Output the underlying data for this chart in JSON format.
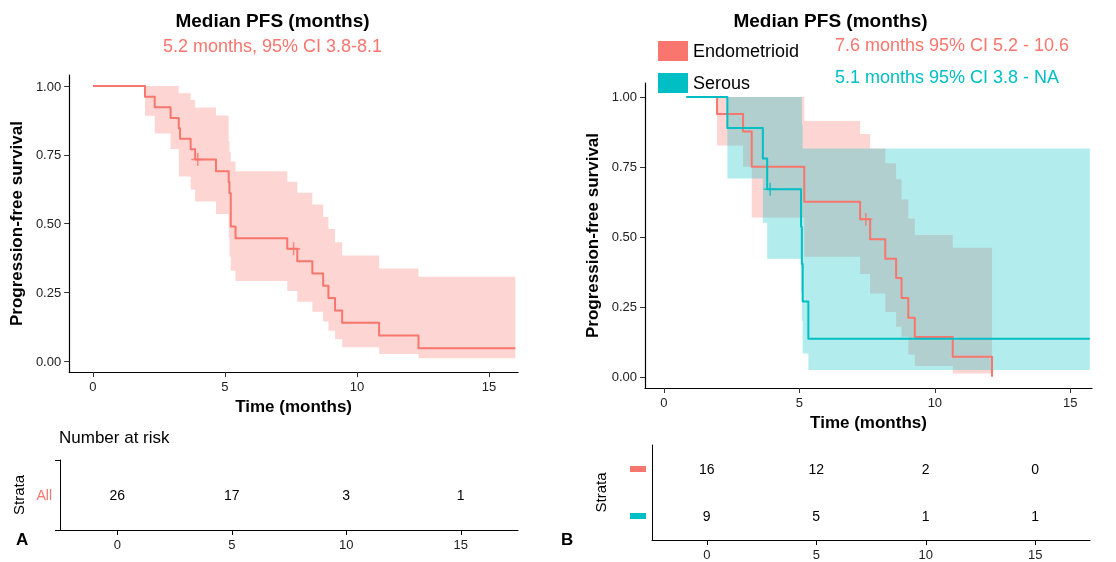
{
  "chart_data": [
    {
      "type": "step",
      "title": "Median PFS (months)",
      "subtitle": "5.2 months, 95% CI 3.8-8.1",
      "xlabel": "Time (months)",
      "ylabel": "Progression-free survival",
      "xlim": [
        -0.9,
        16.1
      ],
      "xticks": [
        0,
        5,
        10,
        15
      ],
      "ylim": [
        -0.04,
        1.04
      ],
      "yticks": [
        {
          "value": 0,
          "label": "0.00"
        },
        {
          "value": 0.25,
          "label": "0.25"
        },
        {
          "value": 0.5,
          "label": "0.50"
        },
        {
          "value": 0.75,
          "label": "0.75"
        },
        {
          "value": 1,
          "label": "1.00"
        }
      ],
      "grid": false,
      "legend": false,
      "series": [
        {
          "color": "#f8766d",
          "x": [
            0,
            1.97,
            2.34,
            2.94,
            3.25,
            3.3,
            3.7,
            3.87,
            4.66,
            5.14,
            5.17,
            5.22,
            5.4,
            7.36,
            7.74,
            8.31,
            8.72,
            8.92,
            9.17,
            9.44,
            10.84,
            12.33,
            16.0
          ],
          "values": [
            1,
            0.961,
            0.923,
            0.884,
            0.846,
            0.808,
            0.77,
            0.733,
            0.69,
            0.651,
            0.61,
            0.489,
            0.447,
            0.408,
            0.363,
            0.318,
            0.274,
            0.229,
            0.184,
            0.139,
            0.093,
            0.047,
            0.047
          ],
          "upper": [
            1,
            1,
            1,
            1,
            0.974,
            0.974,
            0.949,
            0.922,
            0.893,
            0.8,
            0.76,
            0.726,
            0.69,
            0.652,
            0.612,
            0.569,
            0.524,
            0.48,
            0.432,
            0.384,
            0.337,
            0.307,
            0.307
          ],
          "lower": [
            1,
            0.892,
            0.827,
            0.771,
            0.671,
            0.671,
            0.624,
            0.58,
            0.535,
            0.45,
            0.38,
            0.328,
            0.291,
            0.255,
            0.216,
            0.179,
            0.144,
            0.11,
            0.079,
            0.05,
            0.026,
            0.01,
            0.01
          ]
        },
        {
          "type": "scatter",
          "marker": "cross",
          "color": "#f8766d",
          "x": [
            3.97,
            7.6
          ],
          "values": [
            0.733,
            0.408
          ]
        }
      ]
    },
    {
      "type": "step",
      "title": "Median PFS (months)",
      "xlabel": "Time (months)",
      "ylabel": "Progression-free survival",
      "xlim": [
        -0.7,
        15.8
      ],
      "xticks": [
        0,
        5,
        10,
        15
      ],
      "ylim": [
        -0.04,
        1.05
      ],
      "yticks": [
        {
          "value": 0,
          "label": "0.00"
        },
        {
          "value": 0.25,
          "label": "0.25"
        },
        {
          "value": 0.5,
          "label": "0.50"
        },
        {
          "value": 0.75,
          "label": "0.75"
        },
        {
          "value": 1,
          "label": "1.00"
        }
      ],
      "grid": false,
      "legend": "top left",
      "annotations": [
        "7.6 months 95% CI 5.2 - 10.6",
        "5.1 months 95% CI 3.8 - NA"
      ],
      "series": [
        {
          "name": "Endometrioid",
          "color": "#f8766d",
          "x": [
            0.83,
            1.96,
            2.92,
            3.24,
            5.18,
            7.24,
            7.61,
            8.17,
            8.57,
            8.77,
            9.02,
            9.26,
            10.66,
            12.11
          ],
          "values": [
            1,
            0.939,
            0.877,
            0.751,
            0.626,
            0.563,
            0.492,
            0.422,
            0.353,
            0.282,
            0.211,
            0.142,
            0.072,
            0
          ],
          "upper": [
            1,
            1,
            1,
            1,
            0.914,
            0.868,
            0.816,
            0.763,
            0.706,
            0.634,
            0.566,
            0.507,
            0.461,
            0.461
          ],
          "lower": [
            1,
            0.827,
            0.751,
            0.569,
            0.429,
            0.367,
            0.298,
            0.232,
            0.179,
            0.143,
            0.08,
            0.039,
            0.012,
            0
          ]
        },
        {
          "name": "Serous",
          "color": "#00bfc4",
          "x": [
            0.83,
            2.34,
            3.65,
            3.81,
            5.06,
            5.09,
            5.12,
            5.33,
            15.72
          ],
          "values": [
            1,
            0.889,
            0.78,
            0.67,
            0.536,
            0.403,
            0.269,
            0.136,
            0.136
          ],
          "upper": [
            1,
            1,
            1,
            1,
            1,
            0.9,
            0.816,
            0.816,
            0.816
          ],
          "lower": [
            1,
            0.709,
            0.551,
            0.422,
            0.3,
            0.2,
            0.083,
            0.024,
            0.024
          ]
        },
        {
          "type": "scatter",
          "marker": "cross",
          "color": "#f8766d",
          "x": [
            7.45
          ],
          "values": [
            0.563
          ]
        },
        {
          "type": "scatter",
          "marker": "cross",
          "color": "#00bfc4",
          "x": [
            3.92
          ],
          "values": [
            0.67
          ]
        }
      ]
    },
    {
      "type": "heatmap",
      "title": "Number at risk",
      "ylabel": "Strata",
      "categories": [
        "0",
        "5",
        "10",
        "15"
      ],
      "y_categories": [
        "All"
      ],
      "colors": [
        "#f8766d"
      ],
      "data_labels": true,
      "annotations": [
        "A"
      ],
      "cells": [
        [
          26,
          17,
          3,
          1
        ]
      ]
    },
    {
      "type": "heatmap",
      "ylabel": "Strata",
      "categories": [
        "0",
        "5",
        "10",
        "15"
      ],
      "y_categories": [
        null,
        null
      ],
      "colors": [
        "#f8766d",
        "#00bfc4"
      ],
      "data_labels": true,
      "annotations": [
        "B"
      ],
      "cells": [
        [
          16,
          12,
          2,
          0
        ],
        [
          9,
          5,
          1,
          1
        ]
      ]
    }
  ]
}
